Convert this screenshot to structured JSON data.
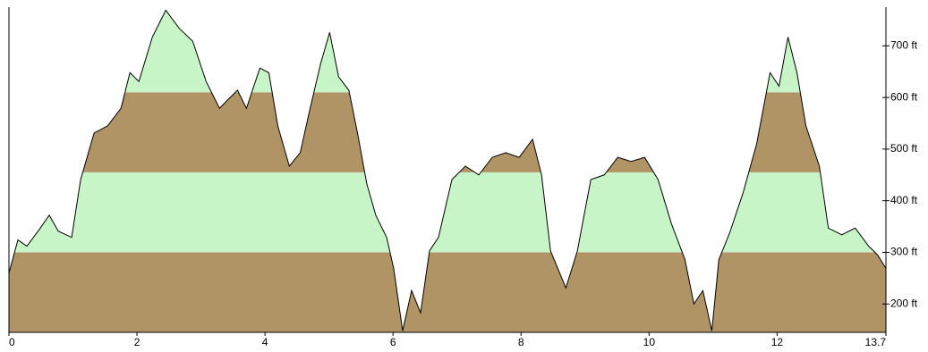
{
  "chart_data": {
    "type": "area",
    "x": [
      0,
      0.14,
      0.28,
      0.49,
      0.63,
      0.77,
      0.98,
      1.12,
      1.33,
      1.54,
      1.75,
      1.89,
      2.03,
      2.24,
      2.45,
      2.66,
      2.87,
      3.08,
      3.29,
      3.43,
      3.57,
      3.71,
      3.92,
      4.06,
      4.2,
      4.38,
      4.55,
      4.69,
      4.87,
      5.01,
      5.15,
      5.31,
      5.45,
      5.59,
      5.73,
      5.9,
      6.01,
      6.15,
      6.29,
      6.43,
      6.57,
      6.71,
      6.92,
      7.13,
      7.34,
      7.55,
      7.76,
      7.97,
      8.18,
      8.32,
      8.46,
      8.7,
      8.88,
      9.09,
      9.3,
      9.51,
      9.72,
      9.93,
      10.14,
      10.35,
      10.56,
      10.7,
      10.84,
      10.98,
      11.09,
      11.26,
      11.47,
      11.68,
      11.89,
      12.03,
      12.17,
      12.31,
      12.45,
      12.66,
      12.8,
      13.01,
      13.22,
      13.43,
      13.57,
      13.7
    ],
    "values": [
      260,
      324,
      312,
      347,
      372,
      341,
      329,
      441,
      531,
      545,
      579,
      648,
      631,
      717,
      769,
      734,
      709,
      631,
      579,
      597,
      614,
      579,
      657,
      648,
      545,
      467,
      493,
      571,
      666,
      726,
      640,
      614,
      528,
      433,
      372,
      329,
      269,
      148,
      226,
      183,
      303,
      329,
      441,
      467,
      450,
      484,
      493,
      484,
      519,
      450,
      303,
      231,
      303,
      441,
      450,
      484,
      476,
      484,
      441,
      355,
      286,
      200,
      226,
      148,
      286,
      338,
      416,
      510,
      648,
      622,
      717,
      648,
      545,
      467,
      347,
      334,
      347,
      312,
      295,
      269
    ],
    "xlim": [
      0,
      13.7
    ],
    "xticks": [
      0,
      2,
      4,
      6,
      8,
      10,
      12,
      13.7
    ],
    "ylim": [
      145,
      775
    ],
    "yticks": [
      {
        "value": 200,
        "label": "200 ft"
      },
      {
        "value": 300,
        "label": "300 ft"
      },
      {
        "value": 400,
        "label": "400 ft"
      },
      {
        "value": 500,
        "label": "500 ft"
      },
      {
        "value": 600,
        "label": "600 ft"
      },
      {
        "value": 700,
        "label": "700 ft"
      }
    ],
    "bands": [
      {
        "from": 145,
        "to": 300,
        "color": "#b09465"
      },
      {
        "from": 300,
        "to": 455,
        "color": "#c8f5c8"
      },
      {
        "from": 455,
        "to": 610,
        "color": "#b09465"
      },
      {
        "from": 610,
        "to": 775,
        "color": "#c8f5c8"
      }
    ],
    "line_color": "#000000"
  }
}
